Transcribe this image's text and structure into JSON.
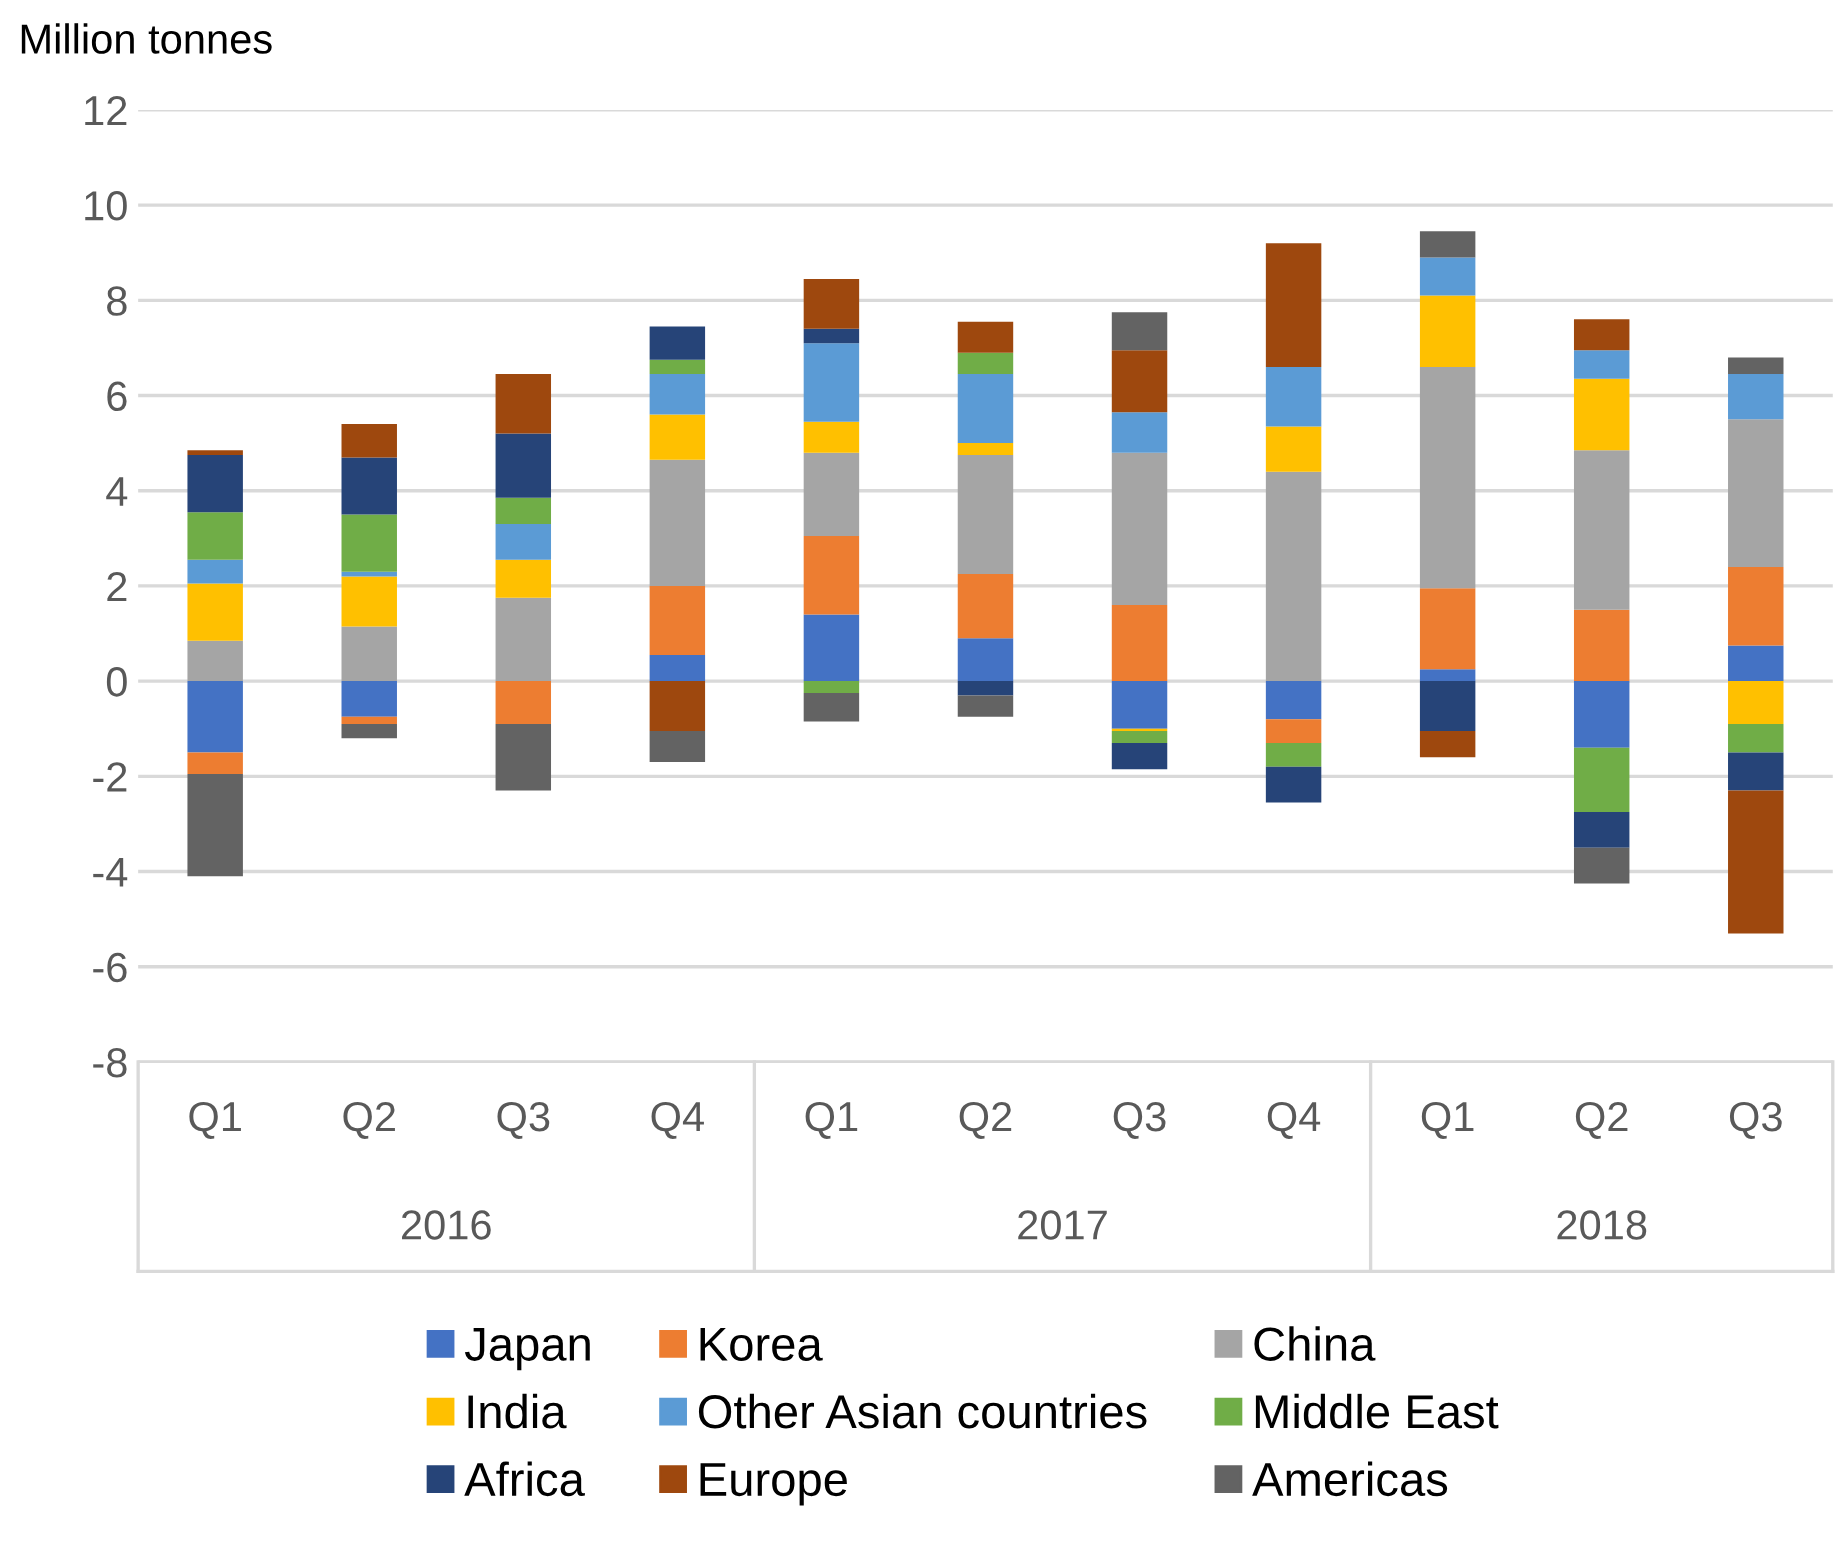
{
  "chart_data": {
    "type": "bar",
    "stacked": true,
    "ylabel": "Million tonnes",
    "categories": [
      "Q1",
      "Q2",
      "Q3",
      "Q4",
      "Q1",
      "Q2",
      "Q3",
      "Q4",
      "Q1",
      "Q2",
      "Q3"
    ],
    "annotations": [
      "2016",
      "2017",
      "2018"
    ],
    "series": [
      {
        "name": "Japan",
        "color": "#4472c4",
        "values": [
          -1.5,
          -0.75,
          0,
          0.55,
          1.4,
          0.9,
          -1.0,
          -0.8,
          0.25,
          -1.4,
          0.75
        ]
      },
      {
        "name": "Korea",
        "color": "#ed7d31",
        "values": [
          -0.45,
          -0.15,
          -0.9,
          1.45,
          1.65,
          1.35,
          1.6,
          -0.5,
          1.7,
          1.5,
          1.65
        ]
      },
      {
        "name": "China",
        "color": "#a5a5a5",
        "values": [
          0.85,
          1.15,
          1.75,
          2.65,
          1.75,
          2.5,
          3.2,
          4.4,
          4.65,
          3.35,
          3.1
        ]
      },
      {
        "name": "India",
        "color": "#ffc000",
        "values": [
          1.2,
          1.05,
          0.8,
          0.95,
          0.65,
          0.25,
          -0.05,
          0.95,
          1.5,
          1.5,
          -0.9
        ]
      },
      {
        "name": "Other Asian countries",
        "color": "#5b9bd5",
        "values": [
          0.5,
          0.1,
          0.75,
          0.85,
          1.65,
          1.45,
          0.85,
          1.25,
          0.8,
          0.6,
          0.95
        ]
      },
      {
        "name": "Middle East",
        "color": "#70ad47",
        "values": [
          1.0,
          1.2,
          0.55,
          0.3,
          -0.25,
          0.45,
          -0.25,
          -0.5,
          0,
          -1.35,
          -0.6
        ]
      },
      {
        "name": "Africa",
        "color": "#264478",
        "values": [
          1.2,
          1.2,
          1.35,
          0.7,
          0.3,
          -0.3,
          -0.55,
          -0.75,
          -1.05,
          -0.75,
          -0.8
        ]
      },
      {
        "name": "Europe",
        "color": "#9e480e",
        "values": [
          0.1,
          0.7,
          1.25,
          -1.05,
          1.05,
          0.65,
          1.3,
          2.6,
          -0.55,
          0.65,
          -3.0
        ]
      },
      {
        "name": "Americas",
        "color": "#636363",
        "values": [
          -2.15,
          -0.3,
          -1.4,
          -0.65,
          -0.6,
          -0.45,
          0.8,
          0,
          0.55,
          -0.75,
          0.35
        ]
      }
    ],
    "ylim": [
      -8,
      12
    ],
    "yticks": [
      -8,
      -6,
      -4,
      -2,
      0,
      2,
      4,
      6,
      8,
      10,
      12
    ],
    "grid": "y",
    "legend": "bottom"
  }
}
